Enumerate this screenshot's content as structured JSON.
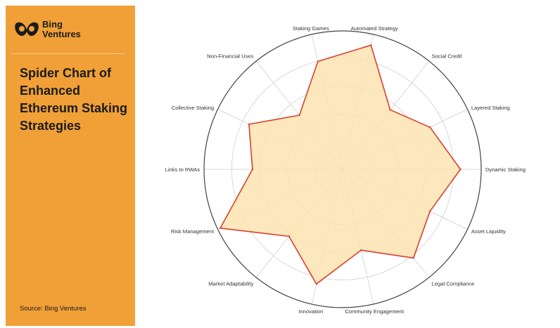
{
  "brand": {
    "name": "Bing Ventures",
    "logo": "bing-ventures-logo"
  },
  "title": "Spider Chart of Enhanced Ethereum Staking Strategies",
  "source": "Source: Bing Ventures",
  "colors": {
    "panel": "#f0a037",
    "fill": "#fde3b0",
    "line": "#d9402e",
    "grid": "#cfcfcf",
    "outer": "#444444"
  },
  "chart_data": {
    "type": "radar",
    "title": "Spider Chart of Enhanced Ethereum Staking Strategies",
    "categories": [
      "Dynamic Staking",
      "Layered Staking",
      "Social Credit",
      "Automated Strategy",
      "Staking Games",
      "Non-Financial Uses",
      "Collective Staking",
      "Links to RWAs",
      "Risk Management",
      "Market Adaptability",
      "Innovation",
      "Community Engagement",
      "Legal Compliance",
      "Asset Liquidity"
    ],
    "series": [
      {
        "values": [
          0.85,
          0.7,
          0.55,
          0.92,
          0.8,
          0.5,
          0.75,
          0.65,
          0.98,
          0.62,
          0.85,
          0.6,
          0.82,
          0.7
        ]
      }
    ],
    "rmax": 1.0,
    "grid_rings": 5,
    "grid": true,
    "legend": "none"
  }
}
